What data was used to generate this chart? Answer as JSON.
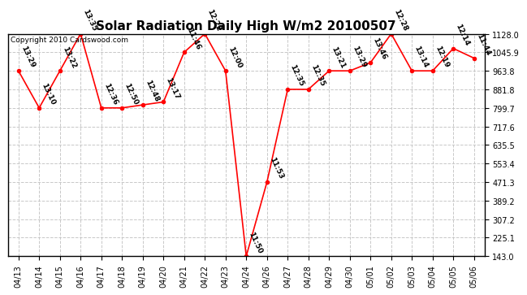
{
  "title": "Solar Radiation Daily High W/m2 20100507",
  "copyright": "Copyright 2010 Cardswood.com",
  "dates": [
    "04/13",
    "04/14",
    "04/15",
    "04/16",
    "04/17",
    "04/18",
    "04/19",
    "04/20",
    "04/21",
    "04/22",
    "04/23",
    "04/24",
    "04/26",
    "04/27",
    "04/28",
    "04/29",
    "04/30",
    "05/01",
    "05/02",
    "05/03",
    "05/04",
    "05/05",
    "05/06"
  ],
  "values": [
    963.8,
    799.7,
    963.8,
    1128.0,
    799.7,
    799.7,
    813.0,
    826.0,
    1045.9,
    1128.0,
    963.8,
    143.0,
    471.3,
    881.8,
    881.8,
    963.8,
    963.8,
    1000.0,
    1128.0,
    963.8,
    963.8,
    1063.0,
    1020.0
  ],
  "point_labels": [
    "13:29",
    "13:10",
    "13:22",
    "13:35",
    "12:36",
    "12:50",
    "12:48",
    "13:17",
    "11:46",
    "12:22",
    "12:00",
    "11:50",
    "11:53",
    "12:35",
    "12:35",
    "13:21",
    "13:29",
    "13:46",
    "12:28",
    "13:14",
    "12:19",
    "12:14",
    "11:44"
  ],
  "ylim": [
    143.0,
    1128.0
  ],
  "yticks": [
    143.0,
    225.1,
    307.2,
    389.2,
    471.3,
    553.4,
    635.5,
    717.6,
    799.7,
    881.8,
    963.8,
    1045.9,
    1128.0
  ],
  "line_color": "#ff0000",
  "marker_color": "#ff0000",
  "bg_color": "#ffffff",
  "grid_color": "#c8c8c8",
  "title_fontsize": 11,
  "tick_fontsize": 7,
  "label_fontsize": 6.5,
  "copyright_fontsize": 6.5
}
